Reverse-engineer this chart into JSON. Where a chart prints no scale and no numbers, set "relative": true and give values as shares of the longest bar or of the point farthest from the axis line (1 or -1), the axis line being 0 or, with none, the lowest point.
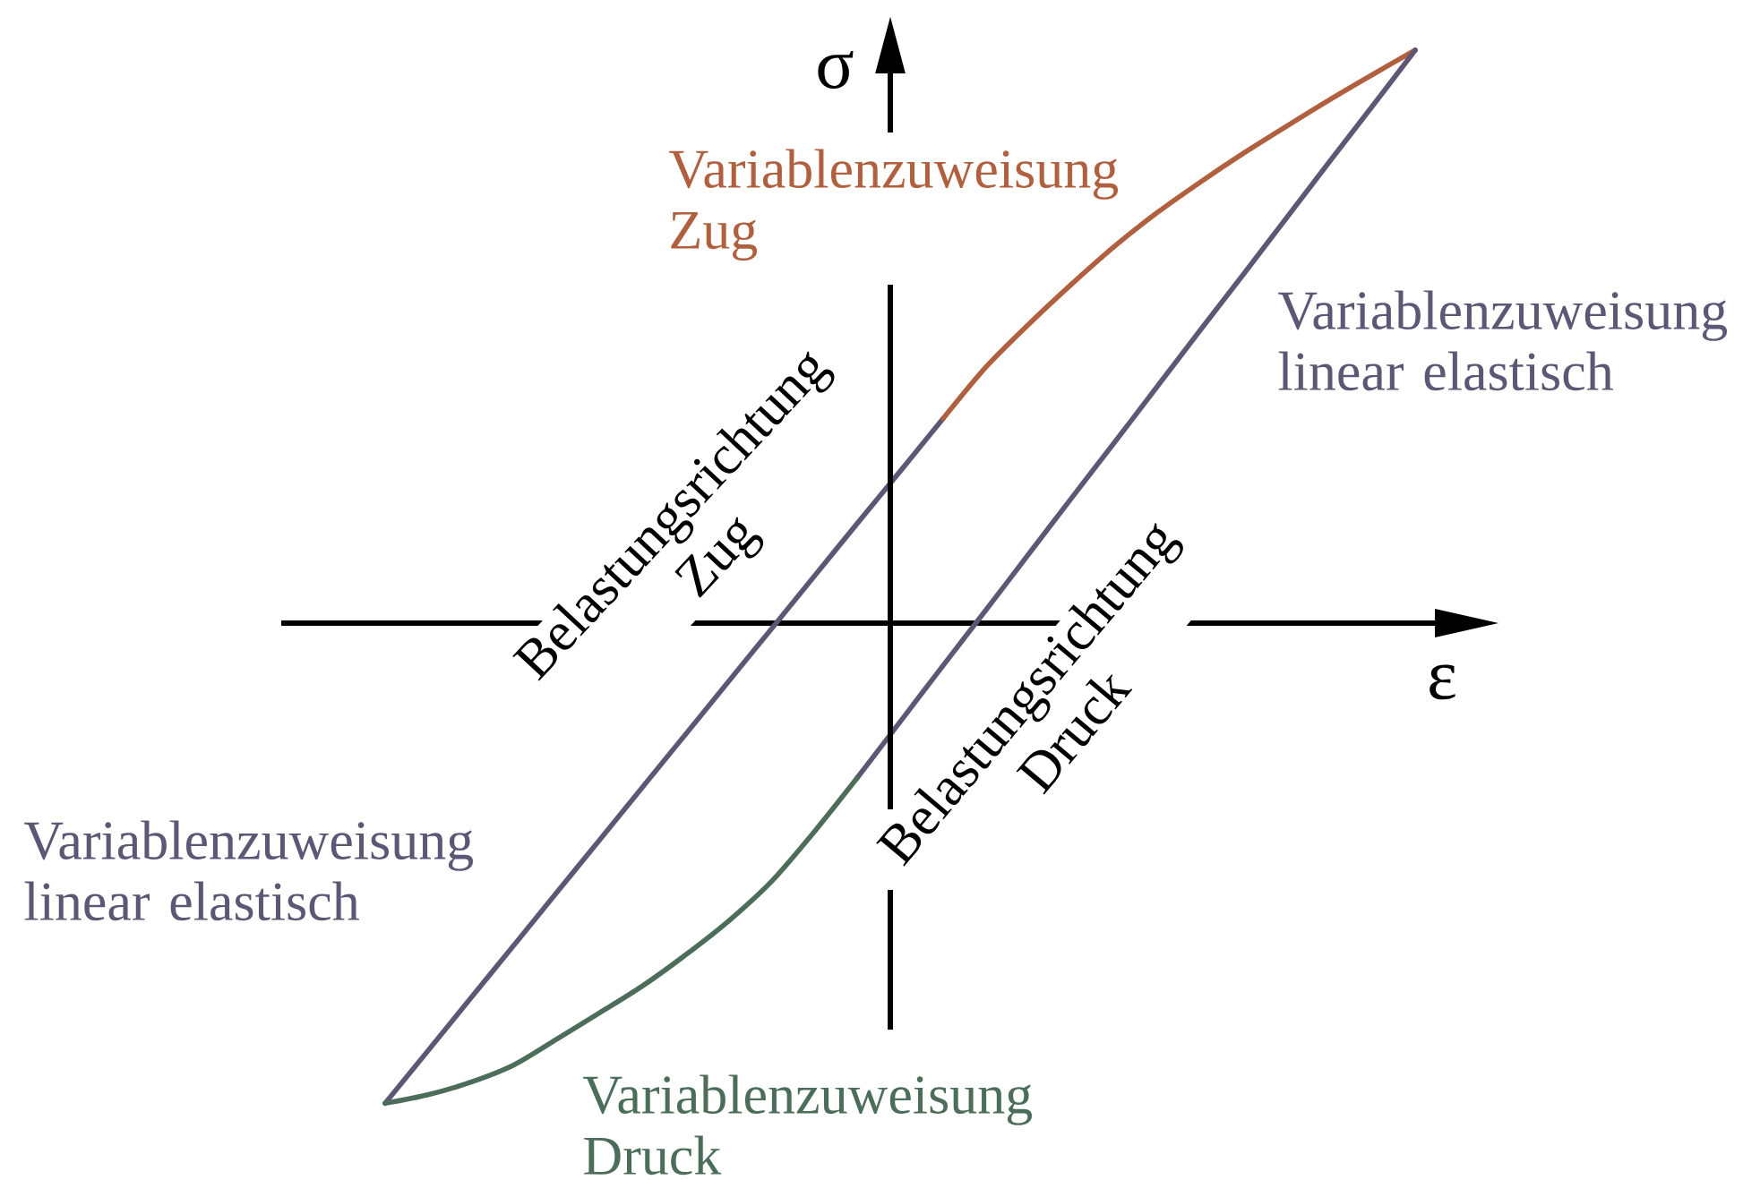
{
  "chart_data": {
    "type": "line",
    "relative": true,
    "xlabel": "ε",
    "ylabel": "σ",
    "categories": [
      null,
      null,
      null,
      null,
      null,
      null,
      null,
      null,
      null,
      null,
      null,
      null,
      null,
      null,
      null,
      null,
      null,
      null,
      null,
      null,
      null,
      null,
      null,
      null,
      null
    ],
    "series": [
      {
        "name": "Variablenzuweisung linear elastisch",
        "color": "#5e5675",
        "values": [
          -0.838,
          -0.746,
          -0.654,
          -0.562,
          -0.47,
          -0.378,
          -0.286,
          -0.194,
          -0.102,
          -0.01,
          0.082,
          0.174,
          0.265,
          0.357,
          null,
          null,
          null,
          null,
          null,
          null,
          null,
          null,
          null,
          null,
          null
        ]
      },
      {
        "name": "Variablenzuweisung Zug",
        "color": "#b0603e",
        "values": [
          null,
          null,
          null,
          null,
          null,
          null,
          null,
          null,
          null,
          null,
          null,
          null,
          null,
          0.357,
          0.447,
          0.522,
          0.592,
          0.658,
          0.717,
          0.77,
          0.82,
          0.867,
          0.913,
          0.957,
          1
        ]
      },
      {
        "name": "Variablenzuweisung linear elastisch",
        "color": "#5e5675",
        "values": [
          null,
          null,
          null,
          null,
          null,
          null,
          null,
          null,
          null,
          null,
          null,
          -0.27,
          -0.172,
          -0.074,
          0.023,
          0.121,
          0.219,
          0.316,
          0.414,
          0.512,
          0.609,
          0.707,
          0.805,
          0.902,
          1
        ]
      },
      {
        "name": "Variablenzuweisung Druck",
        "color": "#4c6d5a",
        "values": [
          -0.838,
          -0.823,
          -0.801,
          -0.771,
          -0.726,
          -0.68,
          -0.633,
          -0.579,
          -0.52,
          -0.451,
          -0.364,
          -0.27,
          null,
          null,
          null,
          null,
          null,
          null,
          null,
          null,
          null,
          null,
          null,
          null,
          null
        ]
      }
    ],
    "annotations": [
      "Belastungsrichtung Zug",
      "Belastungsrichtung Druck"
    ]
  }
}
